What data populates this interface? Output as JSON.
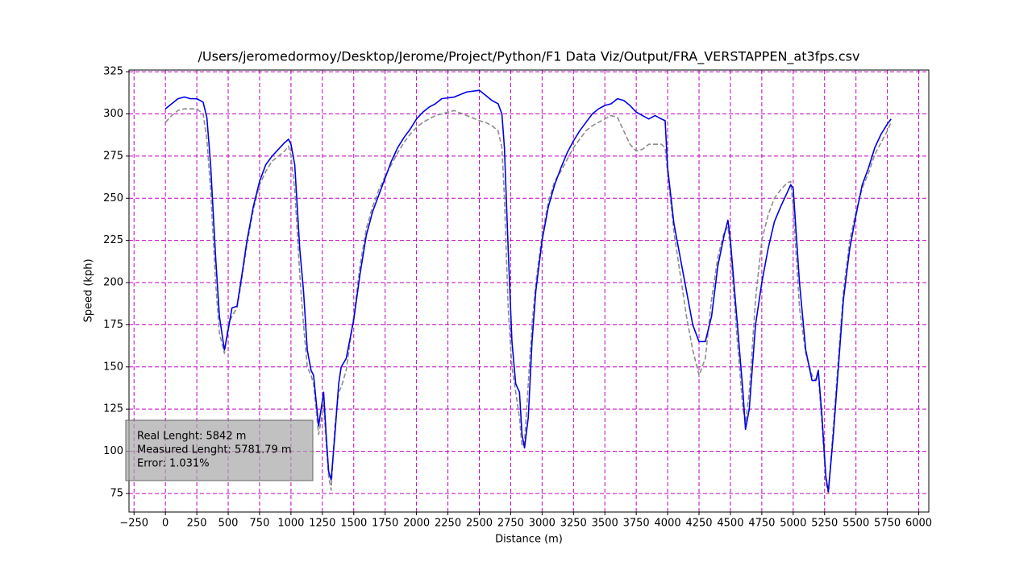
{
  "chart_data": {
    "type": "line",
    "title": "/Users/jeromedormoy/Desktop/Jerome/Project/Python/F1 Data Viz/Output/FRA_VERSTAPPEN_at3fps.csv",
    "xlabel": "Distance (m)",
    "ylabel": "Speed (kph)",
    "x": [
      0,
      50,
      100,
      150,
      200,
      250,
      300,
      330,
      360,
      400,
      430,
      470,
      500,
      530,
      570,
      600,
      650,
      700,
      750,
      800,
      850,
      900,
      950,
      980,
      1000,
      1030,
      1070,
      1100,
      1130,
      1160,
      1180,
      1220,
      1240,
      1260,
      1280,
      1300,
      1320,
      1350,
      1380,
      1400,
      1440,
      1500,
      1550,
      1600,
      1650,
      1700,
      1750,
      1800,
      1850,
      1900,
      1950,
      2000,
      2050,
      2100,
      2150,
      2200,
      2300,
      2400,
      2500,
      2550,
      2600,
      2650,
      2680,
      2700,
      2730,
      2760,
      2790,
      2820,
      2840,
      2860,
      2890,
      2920,
      2950,
      3000,
      3050,
      3100,
      3150,
      3200,
      3250,
      3300,
      3350,
      3400,
      3450,
      3500,
      3550,
      3600,
      3650,
      3700,
      3750,
      3800,
      3850,
      3900,
      3950,
      3980,
      4000,
      4050,
      4100,
      4150,
      4200,
      4250,
      4300,
      4350,
      4400,
      4450,
      4480,
      4500,
      4550,
      4600,
      4620,
      4650,
      4700,
      4750,
      4800,
      4850,
      4900,
      4950,
      4980,
      5000,
      5050,
      5100,
      5150,
      5180,
      5200,
      5230,
      5260,
      5280,
      5320,
      5370,
      5400,
      5450,
      5500,
      5550,
      5600,
      5650,
      5700,
      5750,
      5780
    ],
    "series": [
      {
        "color": "#8c8c8c",
        "dashed": true,
        "values": [
          295,
          299,
          302,
          303,
          303,
          303,
          300,
          285,
          255,
          200,
          170,
          158,
          175,
          180,
          185,
          198,
          223,
          243,
          258,
          266,
          272,
          275,
          278,
          281,
          275,
          255,
          205,
          175,
          150,
          145,
          140,
          110,
          118,
          128,
          105,
          85,
          77,
          115,
          135,
          138,
          148,
          180,
          210,
          232,
          245,
          255,
          263,
          270,
          277,
          283,
          288,
          292,
          295,
          297,
          299,
          300,
          302,
          299,
          296,
          295,
          293,
          290,
          280,
          250,
          185,
          150,
          135,
          120,
          103,
          105,
          140,
          175,
          200,
          228,
          248,
          260,
          266,
          273,
          280,
          285,
          290,
          293,
          295,
          297,
          299,
          298,
          290,
          282,
          278,
          279,
          282,
          282,
          282,
          280,
          265,
          230,
          205,
          180,
          160,
          145,
          155,
          190,
          215,
          230,
          233,
          220,
          170,
          125,
          117,
          135,
          190,
          225,
          240,
          250,
          255,
          259,
          260,
          245,
          185,
          158,
          145,
          142,
          145,
          115,
          82,
          75,
          115,
          165,
          195,
          225,
          242,
          256,
          265,
          276,
          283,
          290,
          295
        ]
      },
      {
        "color": "#0000e6",
        "dashed": false,
        "values": [
          303,
          306,
          309,
          310,
          309,
          309,
          307,
          298,
          270,
          215,
          180,
          160,
          172,
          185,
          186,
          200,
          225,
          245,
          260,
          270,
          275,
          279,
          283,
          285,
          282,
          270,
          220,
          195,
          160,
          148,
          145,
          115,
          125,
          135,
          110,
          88,
          83,
          110,
          140,
          150,
          155,
          178,
          205,
          228,
          242,
          252,
          262,
          272,
          280,
          286,
          291,
          297,
          301,
          304,
          306,
          309,
          310,
          313,
          314,
          311,
          308,
          306,
          300,
          280,
          220,
          165,
          140,
          135,
          110,
          102,
          120,
          165,
          195,
          225,
          245,
          258,
          268,
          277,
          284,
          290,
          295,
          300,
          303,
          305,
          306,
          309,
          308,
          305,
          301,
          299,
          297,
          299,
          297,
          296,
          268,
          235,
          215,
          195,
          175,
          165,
          165,
          180,
          210,
          228,
          237,
          225,
          180,
          135,
          113,
          125,
          175,
          200,
          220,
          236,
          245,
          253,
          258,
          256,
          200,
          160,
          142,
          142,
          148,
          120,
          85,
          76,
          110,
          160,
          190,
          220,
          240,
          258,
          268,
          280,
          288,
          294,
          297
        ]
      }
    ],
    "xlim": [
      -290,
      6080
    ],
    "ylim": [
      64,
      326
    ],
    "xticks": [
      {
        "value": -250,
        "label": "−250"
      },
      0,
      250,
      500,
      750,
      1000,
      1250,
      1500,
      1750,
      2000,
      2250,
      2500,
      2750,
      3000,
      3250,
      3500,
      3750,
      4000,
      4250,
      4500,
      4750,
      5000,
      5250,
      5500,
      5750,
      6000
    ],
    "yticks": [
      75,
      100,
      125,
      150,
      175,
      200,
      225,
      250,
      275,
      300,
      325
    ],
    "grid": true,
    "grid_color": "#c000c0",
    "annotation": [
      "Real Lenght: 5842 m",
      "Measured Lenght: 5781.79 m",
      "Error: 1.031%"
    ]
  }
}
